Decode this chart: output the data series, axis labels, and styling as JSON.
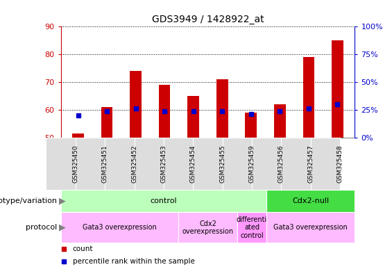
{
  "title": "GDS3949 / 1428922_at",
  "samples": [
    "GSM325450",
    "GSM325451",
    "GSM325452",
    "GSM325453",
    "GSM325454",
    "GSM325455",
    "GSM325459",
    "GSM325456",
    "GSM325457",
    "GSM325458"
  ],
  "count_bottom": [
    50,
    50,
    50,
    50,
    50,
    50,
    50,
    50,
    50,
    50
  ],
  "count_top": [
    51.5,
    61,
    74,
    69,
    65,
    71,
    59,
    62,
    79,
    85
  ],
  "percentile_vals": [
    20,
    24,
    26,
    24,
    24,
    24,
    21,
    24,
    26,
    30
  ],
  "ylim_left": [
    50,
    90
  ],
  "ylim_right": [
    0,
    100
  ],
  "yticks_left": [
    50,
    60,
    70,
    80,
    90
  ],
  "yticks_right": [
    0,
    25,
    50,
    75,
    100
  ],
  "bar_color": "#cc0000",
  "percentile_color": "#0000cc",
  "genotype_groups": [
    {
      "label": "control",
      "start": 0,
      "end": 7,
      "color": "#bbffbb"
    },
    {
      "label": "Cdx2-null",
      "start": 7,
      "end": 10,
      "color": "#44dd44"
    }
  ],
  "protocol_groups": [
    {
      "label": "Gata3 overexpression",
      "start": 0,
      "end": 4,
      "color": "#ffbbff"
    },
    {
      "label": "Cdx2\noverexpression",
      "start": 4,
      "end": 6,
      "color": "#ffbbff"
    },
    {
      "label": "differenti\nated\ncontrol",
      "start": 6,
      "end": 7,
      "color": "#ff99ff"
    },
    {
      "label": "Gata3 overexpression",
      "start": 7,
      "end": 10,
      "color": "#ffbbff"
    }
  ],
  "genotype_label": "genotype/variation",
  "protocol_label": "protocol",
  "legend_count": "count",
  "legend_percentile": "percentile rank within the sample",
  "tick_color_left": "#cc0000",
  "tick_color_right": "#0000cc",
  "bar_width": 0.4
}
